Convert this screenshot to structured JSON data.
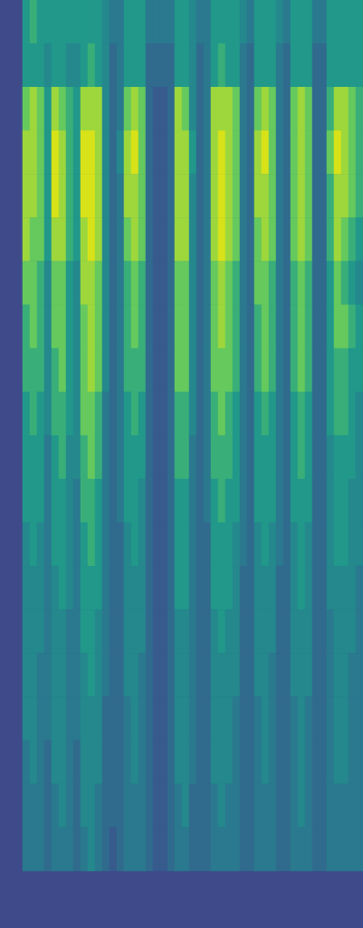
{
  "chart_data": {
    "type": "heatmap",
    "tick_labels": false,
    "color_range": [
      0,
      9
    ],
    "rows": [
      [
        5,
        6,
        5,
        5,
        5,
        5,
        5,
        5,
        5,
        5,
        5,
        4,
        3,
        3,
        5,
        5,
        5,
        3,
        3,
        3,
        3,
        5,
        5,
        4,
        3,
        3,
        5,
        5,
        5,
        5,
        4,
        3,
        5,
        5,
        5,
        4,
        3,
        5,
        5,
        5,
        3,
        3,
        5,
        5,
        5,
        5,
        5
      ],
      [
        5,
        5,
        5,
        4,
        5,
        5,
        4,
        4,
        5,
        6,
        5,
        4,
        2,
        3,
        5,
        5,
        5,
        2,
        2,
        2,
        2,
        5,
        5,
        4,
        2,
        3,
        5,
        6,
        5,
        5,
        3,
        2,
        5,
        5,
        5,
        3,
        2,
        5,
        5,
        5,
        2,
        2,
        5,
        5,
        5,
        5,
        5
      ],
      [
        7,
        8,
        7,
        5,
        8,
        7,
        6,
        5,
        8,
        8,
        8,
        4,
        2,
        3,
        7,
        8,
        7,
        2,
        1,
        1,
        2,
        8,
        7,
        4,
        2,
        3,
        8,
        8,
        8,
        7,
        3,
        2,
        7,
        8,
        7,
        3,
        2,
        7,
        8,
        7,
        2,
        2,
        6,
        8,
        8,
        7,
        6
      ],
      [
        8,
        8,
        7,
        5,
        9,
        8,
        6,
        5,
        9,
        9,
        8,
        4,
        2,
        4,
        8,
        9,
        7,
        2,
        1,
        1,
        2,
        8,
        8,
        5,
        2,
        3,
        8,
        9,
        8,
        7,
        3,
        2,
        8,
        9,
        7,
        3,
        2,
        7,
        8,
        7,
        2,
        2,
        7,
        9,
        8,
        7,
        6
      ],
      [
        8,
        8,
        7,
        5,
        9,
        8,
        6,
        5,
        9,
        9,
        8,
        4,
        2,
        3,
        8,
        8,
        7,
        2,
        1,
        1,
        2,
        8,
        8,
        4,
        2,
        3,
        8,
        9,
        8,
        7,
        3,
        2,
        8,
        8,
        7,
        3,
        2,
        7,
        8,
        7,
        2,
        2,
        6,
        8,
        8,
        7,
        6
      ],
      [
        8,
        7,
        7,
        5,
        8,
        8,
        6,
        5,
        8,
        9,
        8,
        4,
        2,
        3,
        7,
        8,
        7,
        2,
        1,
        1,
        2,
        8,
        8,
        4,
        2,
        3,
        8,
        9,
        8,
        7,
        3,
        2,
        7,
        8,
        7,
        3,
        2,
        7,
        8,
        7,
        2,
        2,
        6,
        8,
        7,
        6,
        5
      ],
      [
        7,
        7,
        6,
        4,
        7,
        7,
        5,
        4,
        8,
        8,
        7,
        4,
        2,
        3,
        6,
        7,
        6,
        2,
        1,
        1,
        2,
        7,
        7,
        4,
        2,
        3,
        7,
        8,
        7,
        6,
        3,
        2,
        7,
        7,
        6,
        3,
        2,
        6,
        7,
        6,
        2,
        2,
        5,
        7,
        6,
        5,
        4
      ],
      [
        6,
        7,
        6,
        4,
        7,
        7,
        5,
        4,
        7,
        8,
        7,
        4,
        2,
        3,
        6,
        7,
        6,
        2,
        1,
        1,
        2,
        7,
        7,
        4,
        2,
        3,
        7,
        8,
        7,
        6,
        3,
        2,
        6,
        7,
        6,
        3,
        2,
        6,
        7,
        6,
        2,
        2,
        5,
        7,
        7,
        6,
        5
      ],
      [
        6,
        6,
        6,
        4,
        6,
        7,
        5,
        4,
        7,
        8,
        7,
        4,
        2,
        3,
        6,
        6,
        6,
        2,
        1,
        1,
        2,
        7,
        7,
        4,
        2,
        3,
        7,
        7,
        7,
        6,
        3,
        2,
        6,
        7,
        6,
        3,
        2,
        6,
        7,
        6,
        2,
        2,
        5,
        6,
        6,
        5,
        5
      ],
      [
        5,
        6,
        5,
        4,
        6,
        6,
        5,
        4,
        7,
        7,
        6,
        3,
        2,
        3,
        5,
        6,
        5,
        2,
        1,
        1,
        2,
        6,
        6,
        4,
        2,
        3,
        6,
        7,
        6,
        5,
        3,
        2,
        5,
        6,
        5,
        3,
        2,
        5,
        6,
        5,
        2,
        2,
        5,
        6,
        6,
        5,
        4
      ],
      [
        5,
        5,
        5,
        3,
        5,
        6,
        4,
        4,
        6,
        7,
        6,
        3,
        2,
        3,
        5,
        5,
        5,
        2,
        1,
        1,
        2,
        6,
        6,
        3,
        2,
        3,
        6,
        6,
        6,
        5,
        3,
        2,
        5,
        5,
        5,
        3,
        2,
        5,
        6,
        5,
        2,
        2,
        4,
        5,
        5,
        5,
        4
      ],
      [
        5,
        5,
        5,
        3,
        5,
        5,
        4,
        3,
        6,
        6,
        5,
        3,
        2,
        3,
        5,
        5,
        4,
        2,
        1,
        1,
        2,
        5,
        5,
        3,
        2,
        3,
        5,
        6,
        5,
        5,
        3,
        2,
        5,
        5,
        5,
        3,
        2,
        5,
        5,
        5,
        2,
        2,
        4,
        5,
        5,
        4,
        4
      ],
      [
        4,
        5,
        4,
        3,
        5,
        5,
        4,
        3,
        5,
        6,
        5,
        3,
        2,
        2,
        4,
        5,
        4,
        2,
        1,
        1,
        2,
        5,
        5,
        3,
        2,
        2,
        5,
        5,
        5,
        4,
        3,
        2,
        4,
        5,
        4,
        3,
        2,
        4,
        5,
        4,
        2,
        2,
        4,
        5,
        5,
        4,
        4
      ],
      [
        4,
        4,
        4,
        3,
        4,
        5,
        4,
        3,
        5,
        5,
        5,
        3,
        2,
        2,
        4,
        4,
        4,
        2,
        1,
        1,
        2,
        5,
        5,
        3,
        2,
        2,
        5,
        5,
        5,
        4,
        2,
        2,
        4,
        4,
        4,
        2,
        2,
        4,
        5,
        4,
        2,
        2,
        4,
        4,
        4,
        4,
        3
      ],
      [
        4,
        4,
        4,
        3,
        4,
        4,
        3,
        3,
        5,
        5,
        4,
        3,
        2,
        2,
        4,
        4,
        4,
        2,
        1,
        1,
        2,
        4,
        4,
        3,
        2,
        2,
        4,
        5,
        4,
        4,
        2,
        2,
        4,
        4,
        4,
        2,
        2,
        4,
        4,
        4,
        2,
        2,
        3,
        4,
        4,
        4,
        3
      ],
      [
        4,
        4,
        3,
        3,
        4,
        4,
        3,
        3,
        4,
        5,
        4,
        3,
        2,
        2,
        4,
        4,
        3,
        2,
        1,
        1,
        2,
        4,
        4,
        3,
        2,
        2,
        4,
        4,
        4,
        4,
        2,
        2,
        4,
        4,
        3,
        2,
        2,
        4,
        4,
        4,
        2,
        2,
        3,
        4,
        4,
        3,
        3
      ],
      [
        4,
        4,
        3,
        3,
        4,
        4,
        3,
        3,
        4,
        4,
        4,
        2,
        2,
        2,
        3,
        4,
        3,
        2,
        1,
        1,
        2,
        4,
        4,
        3,
        2,
        2,
        4,
        4,
        4,
        3,
        2,
        2,
        3,
        4,
        3,
        2,
        2,
        3,
        4,
        3,
        2,
        2,
        3,
        4,
        4,
        3,
        3
      ],
      [
        3,
        4,
        3,
        2,
        4,
        4,
        3,
        2,
        4,
        4,
        4,
        2,
        2,
        2,
        3,
        4,
        3,
        2,
        1,
        1,
        2,
        4,
        4,
        3,
        2,
        2,
        4,
        4,
        4,
        3,
        2,
        2,
        3,
        4,
        3,
        2,
        2,
        3,
        4,
        3,
        2,
        2,
        3,
        4,
        4,
        3,
        3
      ],
      [
        3,
        3,
        3,
        2,
        3,
        4,
        3,
        2,
        4,
        4,
        3,
        2,
        2,
        2,
        3,
        3,
        3,
        2,
        1,
        1,
        2,
        3,
        4,
        2,
        2,
        2,
        3,
        4,
        3,
        3,
        2,
        2,
        3,
        3,
        3,
        2,
        2,
        3,
        4,
        3,
        2,
        2,
        3,
        3,
        3,
        3,
        3
      ],
      [
        3,
        3,
        3,
        2,
        3,
        3,
        3,
        2,
        3,
        4,
        3,
        2,
        1,
        2,
        3,
        3,
        3,
        2,
        1,
        1,
        2,
        3,
        3,
        2,
        2,
        2,
        3,
        3,
        3,
        3,
        2,
        2,
        3,
        3,
        3,
        2,
        2,
        3,
        3,
        3,
        2,
        2,
        3,
        3,
        3,
        3,
        3
      ]
    ]
  }
}
